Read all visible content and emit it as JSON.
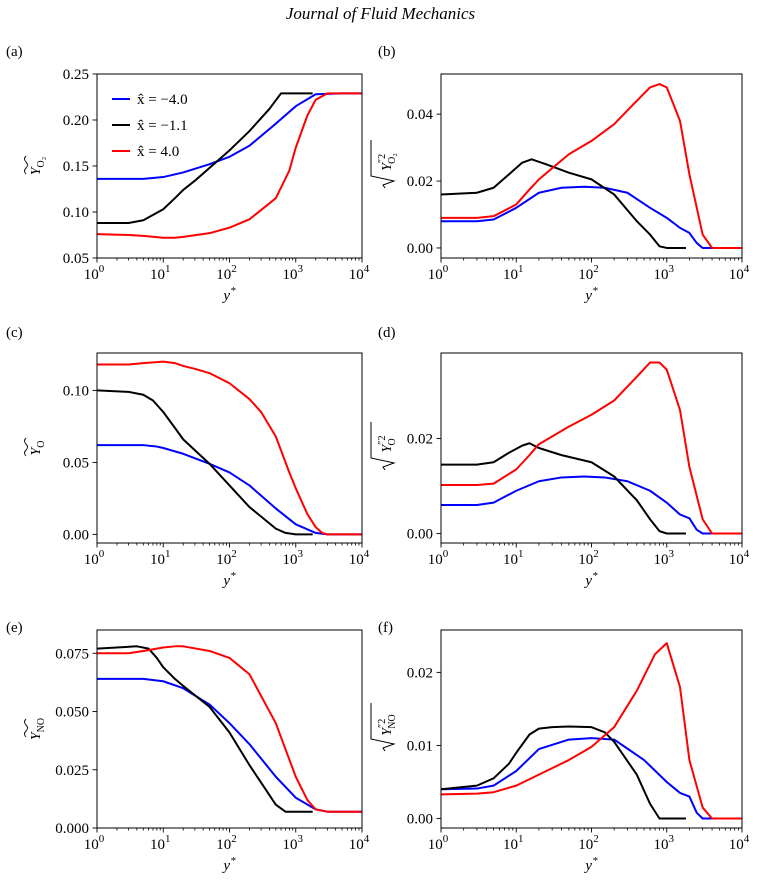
{
  "header": {
    "title": "Journal of Fluid Mechanics"
  },
  "legend": [
    {
      "label": "x̂ = −4.0",
      "color": "#0000ff"
    },
    {
      "label": "x̂ = −1.1",
      "color": "#000000"
    },
    {
      "label": "x̂ = 4.0",
      "color": "#ff0000"
    }
  ],
  "chart_data": [
    {
      "panel": "(a)",
      "type": "line",
      "xscale": "log",
      "xlim": [
        1,
        10000
      ],
      "xlabel": "y*",
      "ylabel": "Y_O2 (Favre mean)",
      "ylim": [
        0.05,
        0.25
      ],
      "xticks": [
        "10^0",
        "10^1",
        "10^2",
        "10^3",
        "10^4"
      ],
      "yticks": [
        "0.05",
        "0.10",
        "0.15",
        "0.20",
        "0.25"
      ],
      "series": [
        {
          "name": "x̂ = −4.0",
          "color": "#0000ff",
          "x": [
            1,
            3,
            5,
            10,
            20,
            50,
            100,
            200,
            500,
            1000,
            2000,
            5000,
            10000
          ],
          "y": [
            0.136,
            0.136,
            0.136,
            0.138,
            0.143,
            0.152,
            0.16,
            0.172,
            0.196,
            0.215,
            0.228,
            0.229,
            0.229
          ]
        },
        {
          "name": "x̂ = −1.1",
          "color": "#000000",
          "x": [
            1,
            3,
            5,
            10,
            15,
            20,
            30,
            50,
            100,
            200,
            400,
            600,
            1000,
            1800
          ],
          "y": [
            0.088,
            0.088,
            0.091,
            0.103,
            0.115,
            0.124,
            0.134,
            0.148,
            0.167,
            0.188,
            0.212,
            0.229,
            0.229,
            0.229
          ]
        },
        {
          "name": "x̂ = 4.0",
          "color": "#ff0000",
          "x": [
            1,
            3,
            5,
            10,
            15,
            20,
            50,
            100,
            200,
            500,
            800,
            1000,
            1500,
            2000,
            3000,
            5000,
            10000
          ],
          "y": [
            0.076,
            0.075,
            0.074,
            0.072,
            0.072,
            0.073,
            0.077,
            0.083,
            0.092,
            0.115,
            0.145,
            0.17,
            0.205,
            0.222,
            0.229,
            0.229,
            0.229
          ]
        }
      ]
    },
    {
      "panel": "(b)",
      "type": "line",
      "xscale": "log",
      "xlim": [
        1,
        10000
      ],
      "xlabel": "y*",
      "ylabel": "sqrt(Y''_O2^2)",
      "ylim": [
        -0.003,
        0.052
      ],
      "xticks": [
        "10^0",
        "10^1",
        "10^2",
        "10^3",
        "10^4"
      ],
      "yticks": [
        "0.00",
        "0.02",
        "0.04"
      ],
      "series": [
        {
          "name": "x̂ = −4.0",
          "color": "#0000ff",
          "x": [
            1,
            3,
            5,
            10,
            20,
            40,
            80,
            150,
            300,
            600,
            1000,
            1500,
            2000,
            2500,
            3000,
            10000
          ],
          "y": [
            0.008,
            0.008,
            0.0085,
            0.012,
            0.0165,
            0.018,
            0.0183,
            0.018,
            0.0165,
            0.012,
            0.009,
            0.006,
            0.0045,
            0.0015,
            0.0,
            0.0
          ]
        },
        {
          "name": "x̂ = −1.1",
          "color": "#000000",
          "x": [
            1,
            3,
            5,
            8,
            12,
            16,
            25,
            50,
            100,
            200,
            400,
            600,
            800,
            1000,
            1800
          ],
          "y": [
            0.016,
            0.0165,
            0.018,
            0.022,
            0.0255,
            0.0265,
            0.025,
            0.0225,
            0.0205,
            0.016,
            0.008,
            0.004,
            0.0005,
            0.0,
            0.0
          ]
        },
        {
          "name": "x̂ = 4.0",
          "color": "#ff0000",
          "x": [
            1,
            3,
            5,
            10,
            15,
            20,
            50,
            100,
            200,
            400,
            600,
            800,
            1000,
            1500,
            2000,
            3000,
            4000,
            10000
          ],
          "y": [
            0.009,
            0.009,
            0.0095,
            0.013,
            0.0175,
            0.0205,
            0.028,
            0.032,
            0.037,
            0.044,
            0.048,
            0.049,
            0.048,
            0.038,
            0.022,
            0.004,
            0.0,
            0.0
          ]
        }
      ]
    },
    {
      "panel": "(c)",
      "type": "line",
      "xscale": "log",
      "xlim": [
        1,
        10000
      ],
      "xlabel": "y*",
      "ylabel": "Y_O (Favre mean)",
      "ylim": [
        -0.006,
        0.126
      ],
      "xticks": [
        "10^0",
        "10^1",
        "10^2",
        "10^3",
        "10^4"
      ],
      "yticks": [
        "0.00",
        "0.05",
        "0.10"
      ],
      "series": [
        {
          "name": "x̂ = −4.0",
          "color": "#0000ff",
          "x": [
            1,
            3,
            5,
            8,
            10,
            20,
            50,
            100,
            200,
            500,
            1000,
            2000,
            3000,
            10000
          ],
          "y": [
            0.062,
            0.062,
            0.062,
            0.061,
            0.06,
            0.056,
            0.049,
            0.043,
            0.034,
            0.018,
            0.007,
            0.001,
            0.0,
            0.0
          ]
        },
        {
          "name": "x̂ = −1.1",
          "color": "#000000",
          "x": [
            1,
            3,
            5,
            7,
            10,
            15,
            20,
            50,
            100,
            200,
            500,
            700,
            1000,
            1800
          ],
          "y": [
            0.1,
            0.099,
            0.097,
            0.093,
            0.085,
            0.074,
            0.066,
            0.049,
            0.034,
            0.019,
            0.004,
            0.001,
            0.0,
            0.0
          ]
        },
        {
          "name": "x̂ = 4.0",
          "color": "#ff0000",
          "x": [
            1,
            3,
            5,
            10,
            15,
            20,
            30,
            50,
            100,
            200,
            300,
            500,
            800,
            1000,
            1500,
            2000,
            2500,
            3000,
            10000
          ],
          "y": [
            0.118,
            0.118,
            0.119,
            0.12,
            0.119,
            0.117,
            0.115,
            0.112,
            0.105,
            0.094,
            0.085,
            0.068,
            0.043,
            0.032,
            0.014,
            0.005,
            0.001,
            0.0,
            0.0
          ]
        }
      ]
    },
    {
      "panel": "(d)",
      "type": "line",
      "xscale": "log",
      "xlim": [
        1,
        10000
      ],
      "xlabel": "y*",
      "ylabel": "sqrt(Y''_O^2)",
      "ylim": [
        -0.002,
        0.038
      ],
      "xticks": [
        "10^0",
        "10^1",
        "10^2",
        "10^3",
        "10^4"
      ],
      "yticks": [
        "0.00",
        "0.02"
      ],
      "series": [
        {
          "name": "x̂ = −4.0",
          "color": "#0000ff",
          "x": [
            1,
            3,
            5,
            10,
            20,
            40,
            80,
            150,
            300,
            600,
            1000,
            1500,
            2000,
            2500,
            3000,
            10000
          ],
          "y": [
            0.006,
            0.006,
            0.0065,
            0.009,
            0.011,
            0.0118,
            0.012,
            0.0118,
            0.011,
            0.009,
            0.0065,
            0.004,
            0.0032,
            0.0008,
            0.0,
            0.0
          ]
        },
        {
          "name": "x̂ = −1.1",
          "color": "#000000",
          "x": [
            1,
            3,
            5,
            8,
            12,
            15,
            20,
            40,
            100,
            200,
            400,
            600,
            800,
            1000,
            1800
          ],
          "y": [
            0.0145,
            0.0145,
            0.015,
            0.017,
            0.0185,
            0.019,
            0.018,
            0.0165,
            0.015,
            0.012,
            0.007,
            0.003,
            0.0005,
            0.0,
            0.0
          ]
        },
        {
          "name": "x̂ = 4.0",
          "color": "#ff0000",
          "x": [
            1,
            3,
            5,
            10,
            15,
            20,
            50,
            100,
            200,
            400,
            600,
            800,
            1000,
            1500,
            2000,
            3000,
            4000,
            10000
          ],
          "y": [
            0.0102,
            0.0102,
            0.0105,
            0.0135,
            0.0165,
            0.0188,
            0.0225,
            0.025,
            0.028,
            0.033,
            0.036,
            0.036,
            0.0345,
            0.026,
            0.014,
            0.003,
            0.0,
            0.0
          ]
        }
      ]
    },
    {
      "panel": "(e)",
      "type": "line",
      "xscale": "log",
      "xlim": [
        1,
        10000
      ],
      "xlabel": "y*",
      "ylabel": "Y_NO (Favre mean)",
      "ylim": [
        0,
        0.085
      ],
      "xticks": [
        "10^0",
        "10^1",
        "10^2",
        "10^3",
        "10^4"
      ],
      "yticks": [
        "0.000",
        "0.025",
        "0.050",
        "0.075"
      ],
      "series": [
        {
          "name": "x̂ = −4.0",
          "color": "#0000ff",
          "x": [
            1,
            3,
            5,
            10,
            20,
            50,
            100,
            200,
            500,
            1000,
            2000,
            3000,
            10000
          ],
          "y": [
            0.064,
            0.064,
            0.064,
            0.063,
            0.06,
            0.053,
            0.045,
            0.036,
            0.022,
            0.013,
            0.008,
            0.007,
            0.007
          ]
        },
        {
          "name": "x̂ = −1.1",
          "color": "#000000",
          "x": [
            1,
            2,
            4,
            6,
            8,
            10,
            15,
            20,
            50,
            100,
            200,
            500,
            700,
            1000,
            1800
          ],
          "y": [
            0.077,
            0.0775,
            0.078,
            0.077,
            0.073,
            0.069,
            0.064,
            0.061,
            0.052,
            0.041,
            0.027,
            0.01,
            0.007,
            0.007,
            0.007
          ]
        },
        {
          "name": "x̂ = 4.0",
          "color": "#ff0000",
          "x": [
            1,
            3,
            5,
            10,
            15,
            20,
            50,
            100,
            200,
            500,
            1000,
            1500,
            2000,
            3000,
            10000
          ],
          "y": [
            0.075,
            0.075,
            0.076,
            0.0775,
            0.078,
            0.078,
            0.076,
            0.073,
            0.066,
            0.045,
            0.022,
            0.012,
            0.008,
            0.007,
            0.007
          ]
        }
      ]
    },
    {
      "panel": "(f)",
      "type": "line",
      "xscale": "log",
      "xlim": [
        1,
        10000
      ],
      "xlabel": "y*",
      "ylabel": "sqrt(Y''_NO^2)",
      "ylim": [
        -0.0013,
        0.0258
      ],
      "xticks": [
        "10^0",
        "10^1",
        "10^2",
        "10^3",
        "10^4"
      ],
      "yticks": [
        "0.00",
        "0.01",
        "0.02"
      ],
      "series": [
        {
          "name": "x̂ = −4.0",
          "color": "#0000ff",
          "x": [
            1,
            3,
            5,
            10,
            20,
            50,
            100,
            200,
            500,
            1000,
            1500,
            2000,
            2500,
            3000,
            10000
          ],
          "y": [
            0.004,
            0.0041,
            0.0045,
            0.0065,
            0.0095,
            0.0108,
            0.011,
            0.0108,
            0.008,
            0.005,
            0.0035,
            0.003,
            0.0008,
            0.0,
            0.0
          ]
        },
        {
          "name": "x̂ = −1.1",
          "color": "#000000",
          "x": [
            1,
            3,
            5,
            8,
            10,
            15,
            20,
            30,
            50,
            100,
            150,
            200,
            400,
            600,
            800,
            1800
          ],
          "y": [
            0.004,
            0.0045,
            0.0055,
            0.0075,
            0.009,
            0.0115,
            0.0123,
            0.0125,
            0.0126,
            0.0125,
            0.0118,
            0.0105,
            0.006,
            0.002,
            0.0,
            0.0
          ]
        },
        {
          "name": "x̂ = 4.0",
          "color": "#ff0000",
          "x": [
            1,
            3,
            5,
            10,
            20,
            50,
            100,
            200,
            400,
            700,
            1000,
            1500,
            2000,
            3000,
            4000,
            10000
          ],
          "y": [
            0.0033,
            0.0034,
            0.0036,
            0.0045,
            0.006,
            0.008,
            0.0098,
            0.0125,
            0.0175,
            0.0225,
            0.024,
            0.018,
            0.008,
            0.0015,
            0.0,
            0.0
          ]
        }
      ]
    }
  ]
}
